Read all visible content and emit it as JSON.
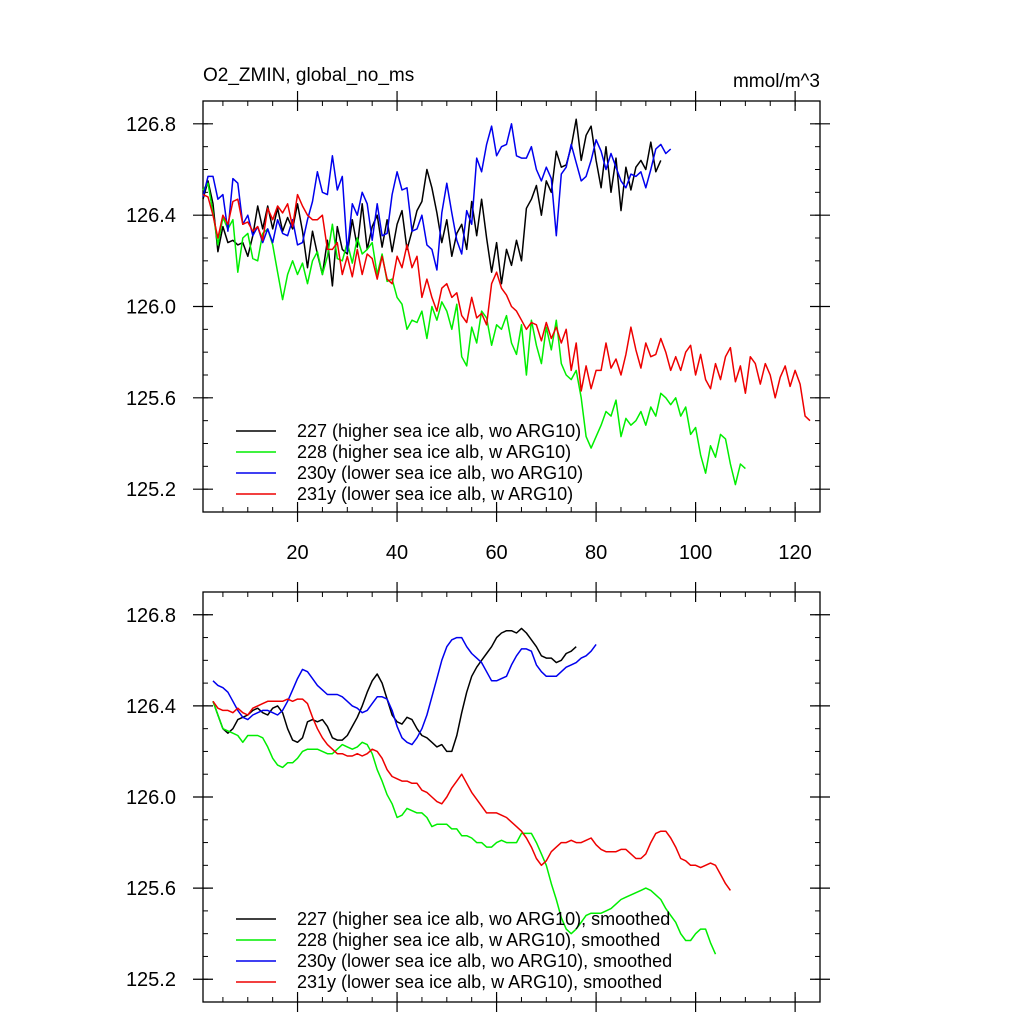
{
  "chart_data": [
    {
      "type": "line",
      "title": "O2_ZMIN, global_no_ms",
      "units": "mmol/m^3",
      "xlim": [
        1,
        125
      ],
      "ylim": [
        125.1,
        126.9
      ],
      "xticks": [
        20,
        40,
        60,
        80,
        100,
        120
      ],
      "xtick_labels": [
        "20",
        "40",
        "60",
        "80",
        "100",
        "120"
      ],
      "yticks": [
        125.2,
        125.6,
        126.0,
        126.4,
        126.8
      ],
      "ytick_labels": [
        "125.2",
        "125.6",
        "126.0",
        "126.4",
        "126.8"
      ],
      "legend_position": "bottom-left",
      "series": [
        {
          "name": "227 (higher sea ice alb, wo ARG10)",
          "color": "#000000",
          "x_start": 1,
          "values": [
            126.47,
            126.55,
            126.45,
            126.24,
            126.35,
            126.28,
            126.29,
            126.27,
            126.28,
            126.22,
            126.31,
            126.44,
            126.34,
            126.44,
            126.34,
            126.43,
            126.33,
            126.39,
            126.34,
            126.45,
            126.33,
            126.17,
            126.33,
            126.23,
            126.14,
            126.29,
            126.09,
            126.35,
            126.25,
            126.23,
            126.38,
            126.26,
            126.45,
            126.25,
            126.35,
            126.4,
            126.26,
            126.38,
            126.24,
            126.36,
            126.42,
            126.25,
            126.33,
            126.42,
            126.46,
            126.6,
            126.52,
            126.41,
            126.28,
            126.38,
            126.22,
            126.32,
            126.36,
            126.25,
            126.46,
            126.31,
            126.47,
            126.3,
            126.15,
            126.28,
            126.1,
            126.25,
            126.18,
            126.29,
            126.2,
            126.43,
            126.47,
            126.53,
            126.4,
            126.55,
            126.5,
            126.68,
            126.61,
            126.62,
            126.7,
            126.82,
            126.64,
            126.75,
            126.79,
            126.64,
            126.52,
            126.7,
            126.5,
            126.65,
            126.42,
            126.61,
            126.51,
            126.61,
            126.64,
            126.6,
            126.72,
            126.59,
            126.64
          ]
        },
        {
          "name": "228 (higher sea ice alb, w ARG10)",
          "color": "#00ee00",
          "x_start": 1,
          "values": [
            126.51,
            126.54,
            126.41,
            126.27,
            126.39,
            126.34,
            126.38,
            126.15,
            126.3,
            126.32,
            126.21,
            126.2,
            126.32,
            126.34,
            126.27,
            126.15,
            126.03,
            126.14,
            126.2,
            126.14,
            126.19,
            126.1,
            126.2,
            126.24,
            126.14,
            126.22,
            126.36,
            126.21,
            126.2,
            126.28,
            126.19,
            126.3,
            126.23,
            126.25,
            126.28,
            126.14,
            126.23,
            126.11,
            126.12,
            126.04,
            126.01,
            125.9,
            125.94,
            125.93,
            125.98,
            125.86,
            126.0,
            125.94,
            126.02,
            125.98,
            125.9,
            126.01,
            125.78,
            125.74,
            125.91,
            125.84,
            125.98,
            125.95,
            125.83,
            125.92,
            125.9,
            125.96,
            125.84,
            125.79,
            125.92,
            125.7,
            125.94,
            125.83,
            125.75,
            125.91,
            125.81,
            125.94,
            125.75,
            125.7,
            125.68,
            125.72,
            125.6,
            125.43,
            125.38,
            125.43,
            125.48,
            125.54,
            125.52,
            125.59,
            125.43,
            125.51,
            125.48,
            125.5,
            125.54,
            125.48,
            125.56,
            125.52,
            125.62,
            125.6,
            125.57,
            125.6,
            125.52,
            125.56,
            125.44,
            125.47,
            125.35,
            125.27,
            125.39,
            125.34,
            125.44,
            125.42,
            125.31,
            125.22,
            125.31,
            125.29
          ]
        },
        {
          "name": "230y (lower sea ice alb, wo ARG10)",
          "color": "#0000ee",
          "x_start": 1,
          "values": [
            126.48,
            126.57,
            126.57,
            126.47,
            126.49,
            126.33,
            126.56,
            126.54,
            126.36,
            126.4,
            126.31,
            126.35,
            126.28,
            126.34,
            126.28,
            126.38,
            126.32,
            126.31,
            126.38,
            126.27,
            126.28,
            126.38,
            126.46,
            126.59,
            126.5,
            126.49,
            126.66,
            126.51,
            126.57,
            126.24,
            126.45,
            126.4,
            126.5,
            126.45,
            126.29,
            126.45,
            126.31,
            126.32,
            126.49,
            126.59,
            126.51,
            126.52,
            126.33,
            126.34,
            126.4,
            126.27,
            126.25,
            126.16,
            126.41,
            126.54,
            126.41,
            126.29,
            126.23,
            126.42,
            126.36,
            126.65,
            126.59,
            126.71,
            126.79,
            126.66,
            126.7,
            126.71,
            126.8,
            126.66,
            126.65,
            126.65,
            126.7,
            126.6,
            126.55,
            126.61,
            126.56,
            126.31,
            126.58,
            126.61,
            126.71,
            126.63,
            126.55,
            126.57,
            126.64,
            126.73,
            126.68,
            126.6,
            126.67,
            126.61,
            126.55,
            126.52,
            126.58,
            126.57,
            126.59,
            126.52,
            126.6,
            126.69,
            126.71,
            126.67,
            126.69
          ]
        },
        {
          "name": "231y (lower sea ice alb, w ARG10)",
          "color": "#ee0000",
          "x_start": 1,
          "values": [
            126.49,
            126.48,
            126.4,
            126.3,
            126.4,
            126.36,
            126.46,
            126.47,
            126.36,
            126.37,
            126.33,
            126.35,
            126.29,
            126.43,
            126.38,
            126.44,
            126.41,
            126.45,
            126.35,
            126.49,
            126.44,
            126.4,
            126.38,
            126.38,
            126.4,
            126.25,
            126.25,
            126.28,
            126.14,
            126.22,
            126.13,
            126.25,
            126.14,
            126.23,
            126.21,
            126.12,
            126.22,
            126.12,
            126.1,
            126.22,
            126.17,
            126.27,
            126.17,
            126.22,
            126.04,
            126.12,
            126.04,
            125.98,
            126.08,
            126.1,
            126.04,
            126.06,
            125.96,
            125.93,
            126.04,
            125.95,
            125.97,
            125.92,
            126.1,
            126.15,
            126.08,
            126.05,
            126.0,
            125.98,
            125.94,
            125.9,
            125.93,
            125.92,
            125.85,
            125.93,
            125.86,
            125.91,
            125.84,
            125.9,
            125.72,
            125.84,
            125.63,
            125.74,
            125.64,
            125.72,
            125.72,
            125.84,
            125.73,
            125.77,
            125.7,
            125.79,
            125.91,
            125.81,
            125.73,
            125.84,
            125.78,
            125.79,
            125.86,
            125.8,
            125.72,
            125.78,
            125.72,
            125.8,
            125.83,
            125.7,
            125.79,
            125.68,
            125.64,
            125.75,
            125.68,
            125.78,
            125.82,
            125.67,
            125.74,
            125.62,
            125.78,
            125.75,
            125.66,
            125.75,
            125.7,
            125.6,
            125.69,
            125.74,
            125.65,
            125.72,
            125.66,
            125.52,
            125.5
          ]
        }
      ]
    },
    {
      "type": "line",
      "xlim": [
        1,
        125
      ],
      "ylim": [
        125.1,
        126.9
      ],
      "xticks": [
        20,
        40,
        60,
        80,
        100,
        120
      ],
      "yticks": [
        125.2,
        125.6,
        126.0,
        126.4,
        126.8
      ],
      "ytick_labels": [
        "125.2",
        "125.6",
        "126.0",
        "126.4",
        "126.8"
      ],
      "legend_position": "bottom-left",
      "series": [
        {
          "name": "227 (higher sea ice alb, wo ARG10), smoothed",
          "color": "#000000",
          "x_start": 3,
          "values": [
            126.42,
            126.36,
            126.3,
            126.28,
            126.3,
            126.34,
            126.35,
            126.36,
            126.38,
            126.39,
            126.37,
            126.36,
            126.39,
            126.4,
            126.37,
            126.3,
            126.25,
            126.24,
            126.26,
            126.33,
            126.34,
            126.33,
            126.34,
            126.31,
            126.26,
            126.25,
            126.25,
            126.27,
            126.31,
            126.35,
            126.4,
            126.46,
            126.51,
            126.54,
            126.5,
            126.43,
            126.36,
            126.33,
            126.32,
            126.35,
            126.34,
            126.3,
            126.27,
            126.26,
            126.24,
            126.22,
            126.23,
            126.2,
            126.2,
            126.27,
            126.37,
            126.46,
            126.53,
            126.57,
            126.6,
            126.63,
            126.66,
            126.7,
            126.72,
            126.73,
            126.73,
            126.72,
            126.74,
            126.72,
            126.69,
            126.66,
            126.62,
            126.61,
            126.61,
            126.59,
            126.6,
            126.63,
            126.64,
            126.66
          ]
        },
        {
          "name": "228 (higher sea ice alb, w ARG10), smoothed",
          "color": "#00ee00",
          "x_start": 3,
          "values": [
            126.42,
            126.36,
            126.3,
            126.29,
            126.28,
            126.27,
            126.24,
            126.27,
            126.27,
            126.27,
            126.26,
            126.22,
            126.17,
            126.14,
            126.13,
            126.15,
            126.15,
            126.17,
            126.2,
            126.21,
            126.21,
            126.21,
            126.2,
            126.19,
            126.19,
            126.21,
            126.23,
            126.22,
            126.21,
            126.22,
            126.24,
            126.23,
            126.19,
            126.12,
            126.07,
            126.01,
            125.97,
            125.91,
            125.92,
            125.95,
            125.94,
            125.93,
            125.93,
            125.91,
            125.87,
            125.88,
            125.88,
            125.88,
            125.86,
            125.86,
            125.83,
            125.83,
            125.82,
            125.8,
            125.8,
            125.78,
            125.78,
            125.8,
            125.81,
            125.8,
            125.8,
            125.8,
            125.84,
            125.84,
            125.84,
            125.8,
            125.75,
            125.7,
            125.62,
            125.55,
            125.47,
            125.42,
            125.4,
            125.42,
            125.45,
            125.48,
            125.49,
            125.49,
            125.49,
            125.5,
            125.51,
            125.53,
            125.55,
            125.56,
            125.57,
            125.58,
            125.59,
            125.6,
            125.59,
            125.57,
            125.55,
            125.51,
            125.48,
            125.45,
            125.4,
            125.37,
            125.37,
            125.4,
            125.42,
            125.42,
            125.36,
            125.31
          ]
        },
        {
          "name": "230y (lower sea ice alb, wo ARG10), smoothed",
          "color": "#0000ee",
          "x_start": 3,
          "values": [
            126.51,
            126.49,
            126.48,
            126.46,
            126.42,
            126.38,
            126.35,
            126.34,
            126.36,
            126.37,
            126.38,
            126.38,
            126.37,
            126.36,
            126.38,
            126.42,
            126.47,
            126.52,
            126.56,
            126.55,
            126.52,
            126.49,
            126.47,
            126.45,
            126.45,
            126.45,
            126.44,
            126.42,
            126.4,
            126.39,
            126.37,
            126.38,
            126.41,
            126.44,
            126.44,
            126.43,
            126.38,
            126.31,
            126.26,
            126.24,
            126.23,
            126.26,
            126.3,
            126.36,
            126.44,
            126.52,
            126.6,
            126.66,
            126.69,
            126.7,
            126.7,
            126.66,
            126.63,
            126.61,
            126.59,
            126.55,
            126.51,
            126.51,
            126.52,
            126.53,
            126.58,
            126.62,
            126.65,
            126.65,
            126.64,
            126.58,
            126.55,
            126.53,
            126.53,
            126.53,
            126.55,
            126.57,
            126.58,
            126.59,
            126.61,
            126.62,
            126.64,
            126.67
          ]
        },
        {
          "name": "231y (lower sea ice alb, w ARG10), smoothed",
          "color": "#ee0000",
          "x_start": 3,
          "values": [
            126.42,
            126.39,
            126.38,
            126.38,
            126.37,
            126.39,
            126.37,
            126.36,
            126.39,
            126.4,
            126.41,
            126.42,
            126.42,
            126.42,
            126.42,
            126.43,
            126.42,
            126.43,
            126.43,
            126.41,
            126.35,
            126.3,
            126.26,
            126.23,
            126.21,
            126.19,
            126.19,
            126.18,
            126.18,
            126.19,
            126.18,
            126.19,
            126.21,
            126.2,
            126.17,
            126.12,
            126.09,
            126.08,
            126.07,
            126.07,
            126.06,
            126.06,
            126.03,
            126.02,
            126.0,
            125.98,
            125.97,
            126.0,
            126.04,
            126.07,
            126.1,
            126.06,
            126.02,
            125.99,
            125.96,
            125.93,
            125.93,
            125.93,
            125.92,
            125.91,
            125.89,
            125.87,
            125.85,
            125.82,
            125.78,
            125.73,
            125.7,
            125.72,
            125.76,
            125.78,
            125.8,
            125.8,
            125.81,
            125.8,
            125.8,
            125.81,
            125.82,
            125.79,
            125.77,
            125.76,
            125.76,
            125.76,
            125.77,
            125.77,
            125.75,
            125.73,
            125.73,
            125.75,
            125.8,
            125.84,
            125.85,
            125.85,
            125.82,
            125.78,
            125.73,
            125.72,
            125.7,
            125.7,
            125.69,
            125.7,
            125.71,
            125.7,
            125.66,
            125.62,
            125.59
          ]
        }
      ]
    }
  ]
}
